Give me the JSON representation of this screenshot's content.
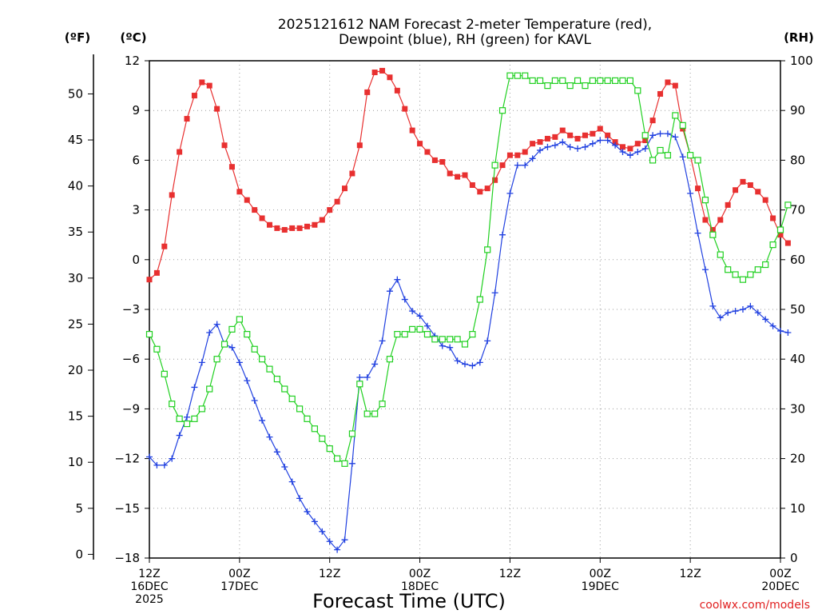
{
  "chart_data": {
    "type": "line",
    "title_line1": "2025121612 NAM Forecast 2-meter Temperature (red),",
    "title_line2": "Dewpoint (blue), RH (green) for KAVL",
    "units": {
      "left_outer": "(ºF)",
      "left_inner": "(ºC)",
      "right": "(RH)"
    },
    "xlabel": "Forecast Time (UTC)",
    "credit": "coolwx.com/models",
    "x_hours_range": [
      0,
      84
    ],
    "x_ticks": [
      {
        "hour": 0,
        "line1": "12Z",
        "line2": "16DEC",
        "line3": "2025"
      },
      {
        "hour": 12,
        "line1": "00Z",
        "line2": "17DEC",
        "line3": ""
      },
      {
        "hour": 24,
        "line1": "12Z",
        "line2": "",
        "line3": ""
      },
      {
        "hour": 36,
        "line1": "00Z",
        "line2": "18DEC",
        "line3": ""
      },
      {
        "hour": 48,
        "line1": "12Z",
        "line2": "",
        "line3": ""
      },
      {
        "hour": 60,
        "line1": "00Z",
        "line2": "19DEC",
        "line3": ""
      },
      {
        "hour": 72,
        "line1": "12Z",
        "line2": "",
        "line3": ""
      },
      {
        "hour": 84,
        "line1": "00Z",
        "line2": "20DEC",
        "line3": ""
      }
    ],
    "celsius_axis": {
      "range": [
        -18,
        12
      ],
      "ticks": [
        "12",
        "9",
        "6",
        "3",
        "0",
        "−3",
        "−6",
        "−9",
        "−12",
        "−15",
        "−18"
      ],
      "tick_values": [
        12,
        9,
        6,
        3,
        0,
        -3,
        -6,
        -9,
        -12,
        -15,
        -18
      ]
    },
    "fahrenheit_axis": {
      "ticks": [
        "50",
        "45",
        "40",
        "35",
        "30",
        "25",
        "20",
        "15",
        "10",
        "5",
        "0"
      ],
      "tick_values": [
        50,
        45,
        40,
        35,
        30,
        25,
        20,
        15,
        10,
        5,
        0
      ]
    },
    "rh_axis": {
      "range": [
        0,
        100
      ],
      "ticks": [
        "100",
        "90",
        "80",
        "70",
        "60",
        "50",
        "40",
        "30",
        "20",
        "10",
        "0"
      ],
      "tick_values": [
        100,
        90,
        80,
        70,
        60,
        50,
        40,
        30,
        20,
        10,
        0
      ]
    },
    "series": [
      {
        "name": "Temperature",
        "color": "#e83030",
        "axis": "celsius",
        "marker": "filled-square",
        "values": [
          -1.2,
          -0.8,
          0.8,
          3.9,
          6.5,
          8.5,
          9.9,
          10.7,
          10.5,
          9.1,
          6.9,
          5.6,
          4.1,
          3.6,
          3.0,
          2.5,
          2.1,
          1.9,
          1.8,
          1.9,
          1.9,
          2.0,
          2.1,
          2.4,
          3.0,
          3.5,
          4.3,
          5.2,
          6.9,
          10.1,
          11.3,
          11.4,
          11.0,
          10.2,
          9.1,
          7.8,
          7.0,
          6.5,
          6.0,
          5.9,
          5.2,
          5.0,
          5.1,
          4.5,
          4.1,
          4.3,
          4.8,
          5.7,
          6.3,
          6.3,
          6.5,
          7.0,
          7.1,
          7.3,
          7.4,
          7.8,
          7.5,
          7.3,
          7.5,
          7.6,
          7.9,
          7.5,
          7.1,
          6.8,
          6.7,
          7.0,
          7.2,
          8.4,
          10.0,
          10.7,
          10.5,
          7.9,
          6.3,
          4.3,
          2.4,
          1.8,
          2.4,
          3.3,
          4.2,
          4.7,
          4.5,
          4.1,
          3.6,
          2.5,
          1.5,
          1.0
        ]
      },
      {
        "name": "Dewpoint",
        "color": "#2040e0",
        "axis": "celsius",
        "marker": "plus",
        "values": [
          -11.9,
          -12.4,
          -12.4,
          -12.0,
          -10.6,
          -9.5,
          -7.7,
          -6.2,
          -4.4,
          -3.9,
          -5.1,
          -5.3,
          -6.2,
          -7.3,
          -8.5,
          -9.7,
          -10.7,
          -11.6,
          -12.5,
          -13.4,
          -14.4,
          -15.2,
          -15.8,
          -16.4,
          -17.0,
          -17.5,
          -16.9,
          -12.3,
          -7.1,
          -7.1,
          -6.3,
          -4.9,
          -1.9,
          -1.2,
          -2.4,
          -3.1,
          -3.4,
          -4.0,
          -4.6,
          -5.2,
          -5.3,
          -6.1,
          -6.3,
          -6.4,
          -6.2,
          -4.9,
          -2.0,
          1.5,
          4.0,
          5.7,
          5.7,
          6.1,
          6.6,
          6.8,
          6.9,
          7.1,
          6.8,
          6.7,
          6.8,
          7.0,
          7.2,
          7.2,
          6.9,
          6.5,
          6.3,
          6.5,
          6.7,
          7.5,
          7.6,
          7.6,
          7.4,
          6.2,
          4.0,
          1.6,
          -0.6,
          -2.8,
          -3.5,
          -3.2,
          -3.1,
          -3.0,
          -2.8,
          -3.2,
          -3.6,
          -4.0,
          -4.3,
          -4.4
        ]
      },
      {
        "name": "RH",
        "color": "#20d020",
        "axis": "rh",
        "marker": "open-square",
        "values": [
          45,
          42,
          37,
          31,
          28,
          27,
          28,
          30,
          34,
          40,
          43,
          46,
          48,
          45,
          42,
          40,
          38,
          36,
          34,
          32,
          30,
          28,
          26,
          24,
          22,
          20,
          19,
          25,
          35,
          29,
          29,
          31,
          40,
          45,
          45,
          46,
          46,
          45,
          44,
          44,
          44,
          44,
          43,
          45,
          52,
          62,
          79,
          90,
          97,
          97,
          97,
          96,
          96,
          95,
          96,
          96,
          95,
          96,
          95,
          96,
          96,
          96,
          96,
          96,
          96,
          94,
          85,
          80,
          82,
          81,
          89,
          87,
          81,
          80,
          72,
          65,
          61,
          58,
          57,
          56,
          57,
          58,
          59,
          63,
          66,
          71
        ]
      }
    ]
  }
}
